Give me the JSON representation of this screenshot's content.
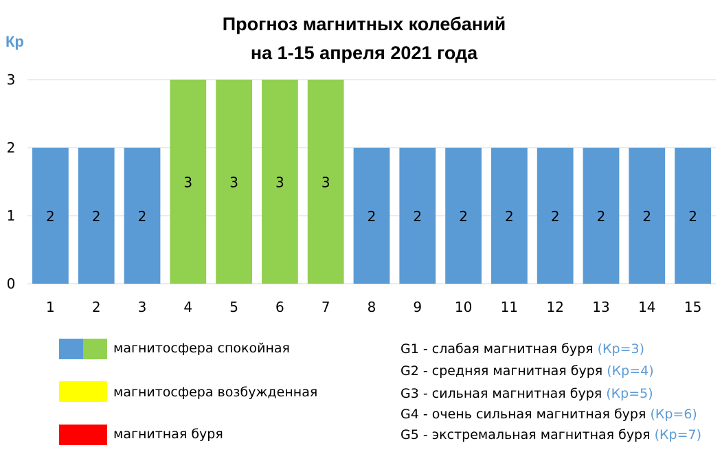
{
  "title_line1": "Прогноз магнитных колебаний",
  "title_line2": "на 1-15 апреля 2021 года",
  "colors": {
    "calm": "#5b9bd5",
    "calm_alt": "#92d050",
    "excited": "#ffff00",
    "storm": "#ff0000",
    "kp_text": "#5b9bd5"
  },
  "chart_data": {
    "type": "bar",
    "title": "Прогноз магнитных колебаний на 1-15 апреля 2021 года",
    "ylabel": "Кр",
    "xlabel": "",
    "ylim": [
      0,
      3
    ],
    "yticks": [
      "0",
      "1",
      "2",
      "3"
    ],
    "categories": [
      "1",
      "2",
      "3",
      "4",
      "5",
      "6",
      "7",
      "8",
      "9",
      "10",
      "11",
      "12",
      "13",
      "14",
      "15"
    ],
    "values": [
      2,
      2,
      2,
      3,
      3,
      3,
      3,
      2,
      2,
      2,
      2,
      2,
      2,
      2,
      2
    ],
    "bar_colors": [
      "#5b9bd5",
      "#5b9bd5",
      "#5b9bd5",
      "#92d050",
      "#92d050",
      "#92d050",
      "#92d050",
      "#5b9bd5",
      "#5b9bd5",
      "#5b9bd5",
      "#5b9bd5",
      "#5b9bd5",
      "#5b9bd5",
      "#5b9bd5",
      "#5b9bd5"
    ],
    "data_labels": [
      "2",
      "2",
      "2",
      "3",
      "3",
      "3",
      "3",
      "2",
      "2",
      "2",
      "2",
      "2",
      "2",
      "2",
      "2"
    ],
    "grid": true
  },
  "legend": {
    "calm": "магнитосфера спокойная",
    "excited": "магнитосфера возбужденная",
    "storm": "магнитная буря"
  },
  "storm_scale": [
    {
      "text": "G1 - слабая магнитная буря",
      "kp": "(Кр=3)"
    },
    {
      "text": "G2 - средняя магнитная буря",
      "kp": "(Кр=4)"
    },
    {
      "text": "G3 - сильная магнитная буря",
      "kp": "(Кр=5)"
    },
    {
      "text": "G4 - очень сильная магнитная буря",
      "kp": "(Кр=6)"
    },
    {
      "text": "G5 - экстремальная магнитная буря",
      "kp": "(Кр=7)"
    }
  ]
}
